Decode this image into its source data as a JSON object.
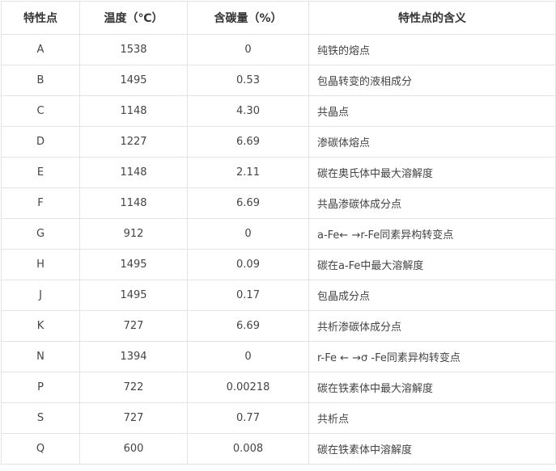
{
  "table": {
    "header": [
      "特性点",
      "温度（℃）",
      "含碳量（%）",
      "特性点的含义"
    ],
    "rows": [
      [
        "A",
        "1538",
        "0",
        "纯铁的熔点"
      ],
      [
        "B",
        "1495",
        "0.53",
        "包晶转变的液相成分"
      ],
      [
        "C",
        "1148",
        "4.30",
        "共晶点"
      ],
      [
        "D",
        "1227",
        "6.69",
        "渗碳体熔点"
      ],
      [
        "E",
        "1148",
        "2.11",
        "碳在奥氏体中最大溶解度"
      ],
      [
        "F",
        "1148",
        "6.69",
        "共晶渗碳体成分点"
      ],
      [
        "G",
        "912",
        "0",
        "a-Fe← →r-Fe同素异构转变点"
      ],
      [
        "H",
        "1495",
        "0.09",
        "碳在a-Fe中最大溶解度"
      ],
      [
        "J",
        "1495",
        "0.17",
        "包晶成分点"
      ],
      [
        "K",
        "727",
        "6.69",
        "共析渗碳体成分点"
      ],
      [
        "N",
        "1394",
        "0",
        "r-Fe ← →σ -Fe同素异构转变点"
      ],
      [
        "P",
        "722",
        "0.00218",
        "碳在铁素体中最大溶解度"
      ],
      [
        "S",
        "727",
        "0.77",
        "共析点"
      ],
      [
        "Q",
        "600",
        "0.008",
        "碳在铁素体中溶解度"
      ]
    ]
  }
}
